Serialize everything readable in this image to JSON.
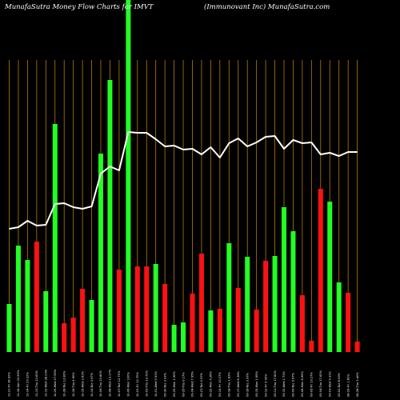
{
  "chart_data": {
    "type": "bar",
    "title_left": "MunafaSutra  Money Flow  Charts for IMVT",
    "title_right": "(Immunovant Inc) MunafaSutra.com",
    "categories": [
      "11-21-Fri 38.92%",
      "11-16-Sun 22.83%",
      "11-14-Fri 29.22%",
      "11-13-Thu 23.83%",
      "11-12-Wed 28.23%",
      "10-29-Wed 27.55%",
      "10-28-Tue 12.80%",
      "10-16-Thu 6.90%",
      "10-15-Wed 2.61%",
      "10-14-Tue 0.97%",
      "10-09-Thu 20.80%",
      "10-08-Wed 13.17%",
      "10-07-Tue 12.70%",
      "10-06-Mon 100%",
      "10-03-Fri 12.70%",
      "10-02-Thu 19.72%",
      "10-01-Wed 0.51%",
      "09-30-Tue 3.02%",
      "09-29-Mon 1.90%",
      "09-25-Thu 6.17%",
      "09-24-Wed 7.95%",
      "09-23-Tue 0.57%",
      "09-22-Mon 5.26%",
      "09-19-Fri 10.27%",
      "09-18-Thu 1.63%",
      "09-17-Wed 6.36%",
      "09-16-Tue 3.97%",
      "09-15-Mon 1.95%",
      "09-12-Fri 5.90%",
      "09-11-Thu 17.82%",
      "09-10-Wed 1.71%",
      "09-09-Tue 5.67%",
      "09-08-Mon 8.99%",
      "09-05-Fri 19.27%",
      "09-04-Thu 17.62%",
      "09-03-Wed 9.31%",
      "09-02-Tue 8.09%",
      "08-29-Fri 1.81%",
      "08-28-Thu 3.40%"
    ],
    "colors": [
      "green",
      "green",
      "green",
      "red",
      "green",
      "green",
      "red",
      "red",
      "red",
      "green",
      "green",
      "green",
      "red",
      "green",
      "red",
      "red",
      "green",
      "red",
      "green",
      "green",
      "red",
      "red",
      "green",
      "red",
      "green",
      "red",
      "green",
      "red",
      "red",
      "green",
      "green",
      "green",
      "red",
      "red",
      "red",
      "green",
      "green",
      "red",
      "red"
    ],
    "bar_values": [
      60,
      133,
      115,
      138,
      76,
      285,
      36,
      43,
      79,
      65,
      248,
      340,
      103,
      440,
      107,
      107,
      110,
      85,
      34,
      37,
      73,
      123,
      52,
      54,
      136,
      80,
      119,
      53,
      114,
      120,
      181,
      151,
      71,
      14,
      204,
      188,
      87,
      74,
      13
    ],
    "line_values": [
      154,
      156,
      164,
      158,
      159,
      185,
      186,
      181,
      179,
      182,
      223,
      232,
      227,
      275,
      274,
      274,
      266,
      257,
      258,
      253,
      254,
      247,
      256,
      243,
      261,
      267,
      257,
      262,
      269,
      270,
      254,
      265,
      261,
      262,
      247,
      249,
      245,
      250,
      250
    ],
    "palette": {
      "background": "#000000",
      "gridline": "#b87a0d",
      "green": "#22ff22",
      "red": "#ff1111",
      "line": "#ffffff",
      "text": "#ffffff"
    },
    "grid": true
  }
}
